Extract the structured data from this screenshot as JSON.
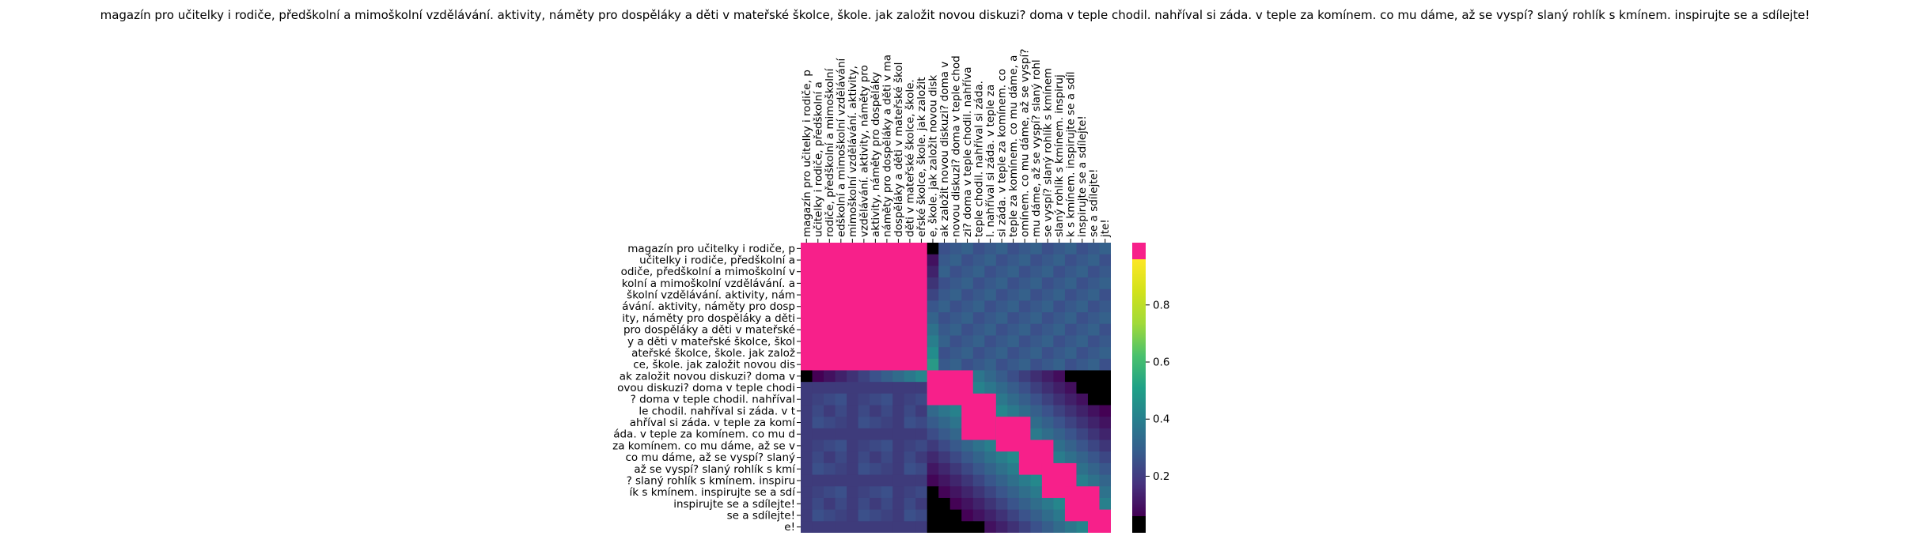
{
  "chart_data": {
    "type": "heatmap",
    "title": "magazín pro učitelky i rodiče, předškolní a mimoškolní vzdělávání. aktivity, náměty pro dospěláky a děti v mateřské školce, škole. jak založit novou diskuzi? doma v teple chodil. nahříval si záda. v teple za komínem. co mu dáme, až se vyspí? slaný rohlík s kmínem. inspirujte se a sdílejte!",
    "x_tick_labels": [
      "magazín pro učitelky i rodiče, p",
      "učitelky i rodiče, předškolní a",
      "rodiče, předškolní a mimoškolní",
      "edškolní a mimoškolní vzdělávání",
      "mimoškolní vzdělávání. aktivity,",
      "vzdělávání. aktivity, náměty pro",
      "aktivity, náměty pro dospěláky",
      "náměty pro dospěláky a děti v ma",
      "dospěláky a děti v mateřské škol",
      "děti v mateřské školce, škole.",
      "eřské školce, škole. jak založit",
      "e, škole. jak založit novou disk",
      "ak založit novou diskuzi? doma v",
      "novou diskuzi? doma v teple chod",
      "zi? doma v teple chodil. nahříva",
      "teple chodil. nahříval si záda.",
      "l. nahříval si záda. v teple za",
      "si záda. v teple za komínem. co",
      "teple za komínem. co mu dáme, a",
      "omínem. co mu dáme, až se vyspí?",
      "mu dáme, až se vyspí? slaný rohl",
      "se vyspí? slaný rohlík s kmínem",
      "slaný rohlík s kmínem. inspiruj",
      "k s kmínem. inspirujte se a sdíl",
      "inspirujte se a sdílejte!",
      "se a sdílejte!",
      "jte!"
    ],
    "y_tick_labels": [
      "magazín pro učitelky i rodiče, p",
      "učitelky i rodiče, předškolní a",
      "odiče, předškolní a mimoškolní v",
      "kolní a mimoškolní vzdělávání. a",
      "školní vzdělávání. aktivity, nám",
      "ávání. aktivity, náměty pro dosp",
      "ity, náměty pro dospěláky a děti",
      "pro dospěláky a děti v mateřské",
      "y a děti v mateřské školce, škol",
      "ateřské školce, škole. jak založ",
      "ce, škole. jak založit novou dis",
      "ak založit novou diskuzi? doma v",
      "ovou diskuzi? doma v teple chodi",
      "? doma v teple chodil. nahříval",
      "le chodil. nahříval si záda. v t",
      "ahříval si záda. v teple za komí",
      "áda. v teple za komínem. co mu d",
      "za komínem. co mu dáme, až se v",
      "co mu dáme, až se vyspí? slaný",
      "až se vyspí? slaný rohlík s kmí",
      "? slaný rohlík s kmínem. inspiru",
      "ík s kmínem. inspirujte se a sdí",
      "inspirujte se a sdílejte!",
      "se a sdílejte!",
      "e!"
    ],
    "colorbar": {
      "colormap": "viridis",
      "over_color": "#f7208a",
      "under_color": "#000000",
      "ticks": [
        "0.2",
        "0.4",
        "0.6",
        "0.8"
      ],
      "range": [
        0.06,
        0.96
      ]
    },
    "blocks": [
      {
        "rows": [
          0,
          10
        ],
        "cols": [
          0,
          10
        ],
        "value": 0.99
      },
      {
        "rows": [
          11,
          13
        ],
        "cols": [
          11,
          14
        ],
        "value": 0.99
      },
      {
        "rows": [
          13,
          16
        ],
        "cols": [
          14,
          16
        ],
        "value": 0.99
      },
      {
        "rows": [
          15,
          17
        ],
        "cols": [
          17,
          19
        ],
        "value": 0.99
      },
      {
        "rows": [
          17,
          19
        ],
        "cols": [
          19,
          21
        ],
        "value": 0.99
      },
      {
        "rows": [
          19,
          21
        ],
        "cols": [
          21,
          23
        ],
        "value": 0.99
      },
      {
        "rows": [
          21,
          23
        ],
        "cols": [
          23,
          25
        ],
        "value": 0.99
      },
      {
        "rows": [
          23,
          24
        ],
        "cols": [
          25,
          26
        ],
        "value": 0.99
      }
    ]
  }
}
